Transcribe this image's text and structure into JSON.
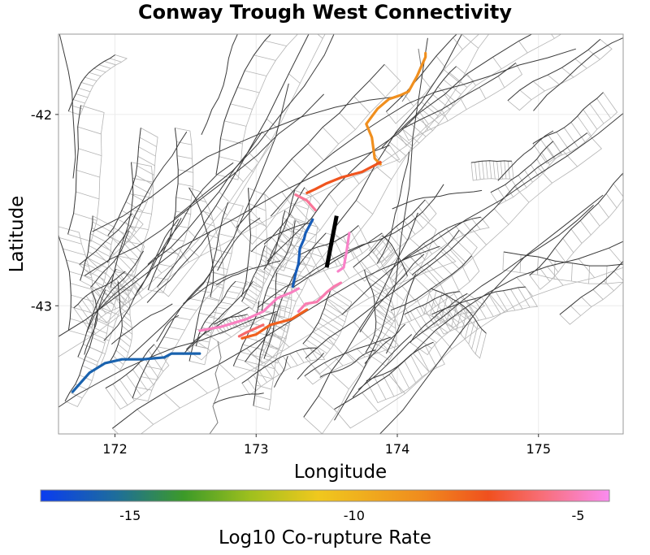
{
  "chart_data": {
    "type": "map",
    "title": "Conway Trough West Connectivity",
    "xlabel": "Longitude",
    "ylabel": "Latitude",
    "xlim": [
      171.6,
      175.6
    ],
    "ylim": [
      -43.67,
      -41.58
    ],
    "x_ticks": [
      {
        "value": 172,
        "label": "172"
      },
      {
        "value": 173,
        "label": "173"
      },
      {
        "value": 174,
        "label": "174"
      },
      {
        "value": 175,
        "label": "175"
      }
    ],
    "y_ticks": [
      {
        "value": -42,
        "label": "-42"
      },
      {
        "value": -43,
        "label": "-43"
      }
    ],
    "grid": true,
    "colorbar": {
      "label": "Log10 Co-rupture Rate",
      "orientation": "horizontal",
      "placement": "bottom",
      "range": [
        -17,
        -4.3
      ],
      "ticks": [
        {
          "value": -15,
          "label": "-15"
        },
        {
          "value": -10,
          "label": "-10"
        },
        {
          "value": -5,
          "label": "-5"
        }
      ],
      "stops": [
        {
          "value": -17,
          "color": "#0a3cf0"
        },
        {
          "value": -15.3,
          "color": "#1e6e9a"
        },
        {
          "value": -13.8,
          "color": "#3c9a28"
        },
        {
          "value": -12.3,
          "color": "#a0c01e"
        },
        {
          "value": -10.8,
          "color": "#f0c81e"
        },
        {
          "value": -8.5,
          "color": "#f08c1e"
        },
        {
          "value": -7,
          "color": "#f0501e"
        },
        {
          "value": -5.8,
          "color": "#f86e78"
        },
        {
          "value": -4.3,
          "color": "#fa8cf0"
        }
      ]
    },
    "colors": {
      "fault_trace": "#3c3c3c",
      "fault_patch": "#b4b4b4",
      "coastline": "#7a7a7a",
      "source_rupture": "#000000"
    },
    "source_fault": {
      "name": "Conway Trough West",
      "trace": [
        [
          173.57,
          -42.53
        ],
        [
          173.5,
          -42.8
        ]
      ]
    },
    "connected_faults": [
      {
        "value": -8.6,
        "trace": [
          [
            173.88,
            -42.26
          ],
          [
            173.84,
            -42.23
          ],
          [
            173.82,
            -42.12
          ],
          [
            173.78,
            -42.05
          ],
          [
            173.86,
            -41.97
          ],
          [
            173.94,
            -41.92
          ],
          [
            174.02,
            -41.9
          ],
          [
            174.08,
            -41.88
          ],
          [
            174.14,
            -41.8
          ],
          [
            174.2,
            -41.7
          ],
          [
            174.2,
            -41.68
          ]
        ]
      },
      {
        "value": -7.1,
        "trace": [
          [
            173.88,
            -42.25
          ],
          [
            173.75,
            -42.3
          ],
          [
            173.6,
            -42.33
          ],
          [
            173.5,
            -42.36
          ],
          [
            173.42,
            -42.39
          ],
          [
            173.36,
            -42.41
          ]
        ]
      },
      {
        "value": -5.4,
        "trace": [
          [
            173.28,
            -42.42
          ],
          [
            173.36,
            -42.45
          ],
          [
            173.42,
            -42.5
          ]
        ]
      },
      {
        "value": -15.9,
        "trace": [
          [
            173.4,
            -42.55
          ],
          [
            173.35,
            -42.62
          ],
          [
            173.34,
            -42.65
          ],
          [
            173.31,
            -42.7
          ],
          [
            173.3,
            -42.78
          ],
          [
            173.28,
            -42.83
          ],
          [
            173.26,
            -42.9
          ]
        ]
      },
      {
        "value": -4.8,
        "trace": [
          [
            173.66,
            -42.62
          ],
          [
            173.64,
            -42.72
          ],
          [
            173.62,
            -42.8
          ],
          [
            173.58,
            -42.82
          ]
        ]
      },
      {
        "value": -4.9,
        "trace": [
          [
            172.6,
            -43.13
          ],
          [
            172.75,
            -43.11
          ],
          [
            172.93,
            -43.07
          ],
          [
            173.05,
            -43.03
          ],
          [
            173.15,
            -42.96
          ],
          [
            173.25,
            -42.93
          ],
          [
            173.3,
            -42.91
          ]
        ]
      },
      {
        "value": -5.1,
        "trace": [
          [
            173.3,
            -43.03
          ],
          [
            173.35,
            -42.99
          ],
          [
            173.43,
            -42.98
          ],
          [
            173.5,
            -42.93
          ],
          [
            173.55,
            -42.9
          ],
          [
            173.6,
            -42.88
          ]
        ]
      },
      {
        "value": -7.4,
        "trace": [
          [
            173.36,
            -43.02
          ],
          [
            173.25,
            -43.07
          ],
          [
            173.1,
            -43.1
          ],
          [
            173.0,
            -43.15
          ],
          [
            172.9,
            -43.17
          ]
        ]
      },
      {
        "value": -6.0,
        "trace": [
          [
            173.05,
            -43.1
          ],
          [
            172.93,
            -43.14
          ],
          [
            172.88,
            -43.16
          ]
        ]
      },
      {
        "value": -15.7,
        "trace": [
          [
            172.6,
            -43.25
          ],
          [
            172.48,
            -43.25
          ],
          [
            172.4,
            -43.25
          ],
          [
            172.35,
            -43.27
          ],
          [
            172.2,
            -43.28
          ],
          [
            172.05,
            -43.28
          ],
          [
            171.93,
            -43.3
          ],
          [
            171.82,
            -43.35
          ],
          [
            171.7,
            -43.45
          ]
        ]
      }
    ]
  }
}
